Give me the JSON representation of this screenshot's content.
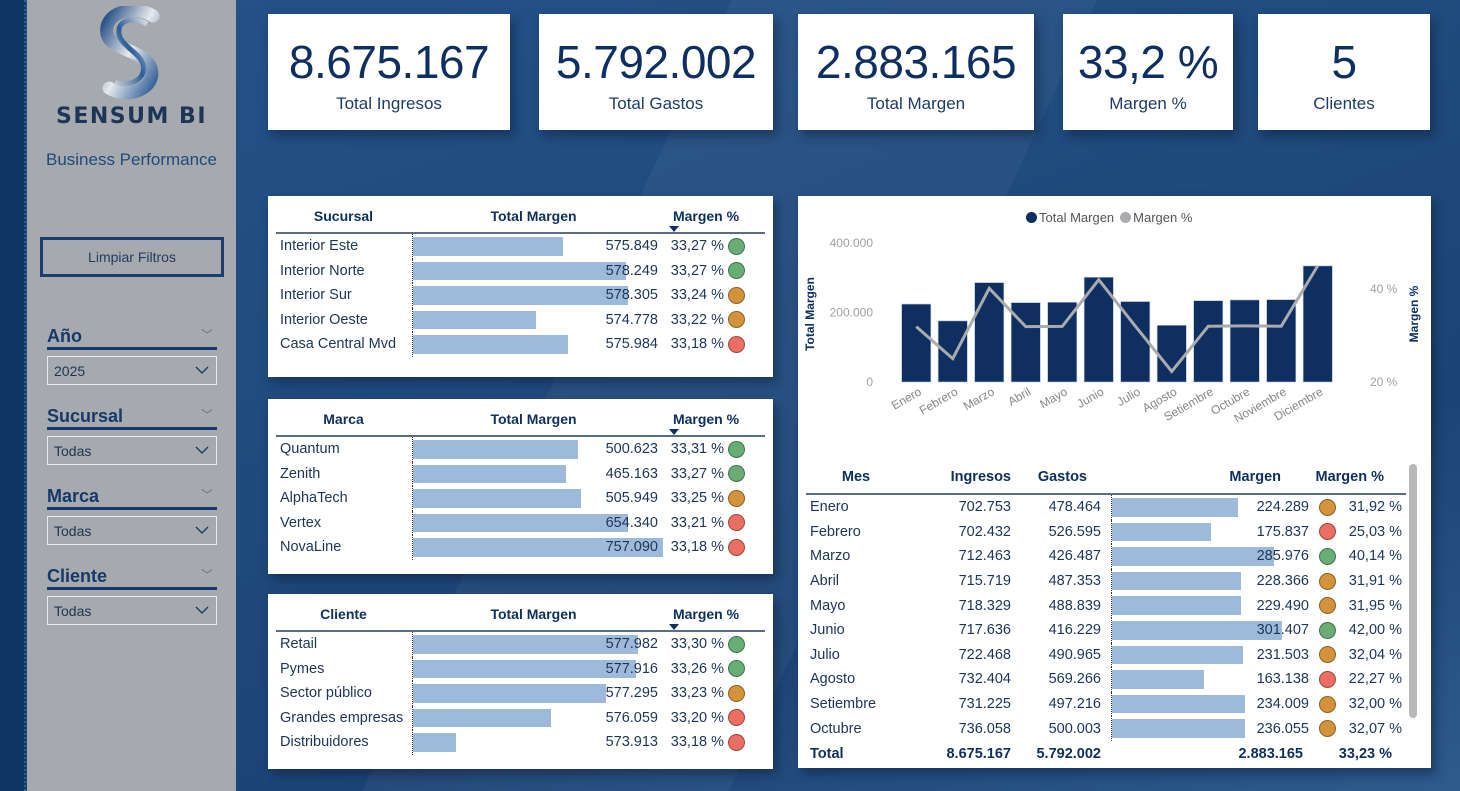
{
  "sidebar": {
    "brand": "SENSUM BI",
    "subtitle": "Business Performance",
    "clear_button": "Limpiar Filtros",
    "filters": [
      {
        "title": "Año",
        "value": "2025"
      },
      {
        "title": "Sucursal",
        "value": "Todas"
      },
      {
        "title": "Marca",
        "value": "Todas"
      },
      {
        "title": "Cliente",
        "value": "Todas"
      }
    ]
  },
  "kpis": [
    {
      "value": "8.675.167",
      "label": "Total Ingresos"
    },
    {
      "value": "5.792.002",
      "label": "Total Gastos"
    },
    {
      "value": "2.883.165",
      "label": "Total Margen"
    },
    {
      "value": "33,2 %",
      "label": "Margen %"
    },
    {
      "value": "5",
      "label": "Clientes"
    }
  ],
  "colors": {
    "good": "#67ad75",
    "mid": "#d4933a",
    "bad": "#ec6d62",
    "bar": "#9ebadb",
    "navy": "#0e2f5f",
    "line": "#a9abae"
  },
  "sucursal_table": {
    "headers": [
      "Sucursal",
      "Total Margen",
      "Margen %"
    ],
    "rows": [
      {
        "name": "Interior Este",
        "margen": "575.849",
        "bar": 0.6,
        "pct": "33,27 %",
        "status": "good"
      },
      {
        "name": "Interior Norte",
        "margen": "578.249",
        "bar": 0.85,
        "pct": "33,27 %",
        "status": "good"
      },
      {
        "name": "Interior Sur",
        "margen": "578.305",
        "bar": 0.86,
        "pct": "33,24 %",
        "status": "mid"
      },
      {
        "name": "Interior Oeste",
        "margen": "574.778",
        "bar": 0.49,
        "pct": "33,22 %",
        "status": "mid"
      },
      {
        "name": "Casa Central Mvd",
        "margen": "575.984",
        "bar": 0.62,
        "pct": "33,18 %",
        "status": "bad"
      }
    ]
  },
  "marca_table": {
    "headers": [
      "Marca",
      "Total Margen",
      "Margen %"
    ],
    "rows": [
      {
        "name": "Quantum",
        "margen": "500.623",
        "bar": 0.66,
        "pct": "33,31 %",
        "status": "good"
      },
      {
        "name": "Zenith",
        "margen": "465.163",
        "bar": 0.61,
        "pct": "33,27 %",
        "status": "good"
      },
      {
        "name": "AlphaTech",
        "margen": "505.949",
        "bar": 0.67,
        "pct": "33,25 %",
        "status": "mid"
      },
      {
        "name": "Vertex",
        "margen": "654.340",
        "bar": 0.86,
        "pct": "33,21 %",
        "status": "bad"
      },
      {
        "name": "NovaLine",
        "margen": "757.090",
        "bar": 1.0,
        "pct": "33,18 %",
        "status": "bad"
      }
    ]
  },
  "cliente_table": {
    "headers": [
      "Cliente",
      "Total Margen",
      "Margen %"
    ],
    "rows": [
      {
        "name": "Retail",
        "margen": "577.982",
        "bar": 0.9,
        "pct": "33,30 %",
        "status": "good"
      },
      {
        "name": "Pymes",
        "margen": "577.916",
        "bar": 0.89,
        "pct": "33,26 %",
        "status": "good"
      },
      {
        "name": "Sector público",
        "margen": "577.295",
        "bar": 0.77,
        "pct": "33,23 %",
        "status": "mid"
      },
      {
        "name": "Grandes empresas",
        "margen": "576.059",
        "bar": 0.55,
        "pct": "33,20 %",
        "status": "bad"
      },
      {
        "name": "Distribuidores",
        "margen": "573.913",
        "bar": 0.17,
        "pct": "33,18 %",
        "status": "bad"
      }
    ]
  },
  "chart_data": {
    "type": "bar",
    "title": "",
    "legend": [
      "Total Margen",
      "Margen %"
    ],
    "legend_position": "top-center",
    "categories": [
      "Enero",
      "Febrero",
      "Marzo",
      "Abril",
      "Mayo",
      "Junio",
      "Julio",
      "Agosto",
      "Setiembre",
      "Octubre",
      "Noviembre",
      "Diciembre"
    ],
    "series": [
      {
        "name": "Total Margen",
        "type": "bar",
        "axis": "left",
        "values": [
          224289,
          175837,
          285976,
          228366,
          229490,
          301407,
          231503,
          163138,
          234009,
          236055,
          237000,
          334000
        ]
      },
      {
        "name": "Margen %",
        "type": "line",
        "axis": "right",
        "values": [
          31.92,
          25.03,
          40.14,
          31.91,
          31.95,
          42.0,
          32.04,
          22.27,
          32.0,
          32.07,
          32.0,
          45.0
        ]
      }
    ],
    "ylabel": "Total Margen",
    "y2label": "Margen %",
    "ylim": [
      0,
      400000
    ],
    "y2lim": [
      20,
      40
    ],
    "yticks": [
      "0",
      "200.000",
      "400.000"
    ],
    "y2ticks": [
      "20 %",
      "40 %"
    ],
    "grid": false
  },
  "month_table": {
    "headers": [
      "Mes",
      "Ingresos",
      "Gastos",
      "Margen",
      "Margen %"
    ],
    "rows": [
      {
        "mes": "Enero",
        "ingresos": "702.753",
        "gastos": "478.464",
        "margen": "224.289",
        "bar": 0.74,
        "pct": "31,92 %",
        "status": "mid"
      },
      {
        "mes": "Febrero",
        "ingresos": "702.432",
        "gastos": "526.595",
        "margen": "175.837",
        "bar": 0.58,
        "pct": "25,03 %",
        "status": "bad"
      },
      {
        "mes": "Marzo",
        "ingresos": "712.463",
        "gastos": "426.487",
        "margen": "285.976",
        "bar": 0.95,
        "pct": "40,14 %",
        "status": "good"
      },
      {
        "mes": "Abril",
        "ingresos": "715.719",
        "gastos": "487.353",
        "margen": "228.366",
        "bar": 0.76,
        "pct": "31,91 %",
        "status": "mid"
      },
      {
        "mes": "Mayo",
        "ingresos": "718.329",
        "gastos": "488.839",
        "margen": "229.490",
        "bar": 0.76,
        "pct": "31,95 %",
        "status": "mid"
      },
      {
        "mes": "Junio",
        "ingresos": "717.636",
        "gastos": "416.229",
        "margen": "301.407",
        "bar": 1.0,
        "pct": "42,00 %",
        "status": "good"
      },
      {
        "mes": "Julio",
        "ingresos": "722.468",
        "gastos": "490.965",
        "margen": "231.503",
        "bar": 0.77,
        "pct": "32,04 %",
        "status": "mid"
      },
      {
        "mes": "Agosto",
        "ingresos": "732.404",
        "gastos": "569.266",
        "margen": "163.138",
        "bar": 0.54,
        "pct": "22,27 %",
        "status": "bad"
      },
      {
        "mes": "Setiembre",
        "ingresos": "731.225",
        "gastos": "497.216",
        "margen": "234.009",
        "bar": 0.78,
        "pct": "32,00 %",
        "status": "mid"
      },
      {
        "mes": "Octubre",
        "ingresos": "736.058",
        "gastos": "500.003",
        "margen": "236.055",
        "bar": 0.78,
        "pct": "32,07 %",
        "status": "mid"
      }
    ],
    "total": {
      "label": "Total",
      "ingresos": "8.675.167",
      "gastos": "5.792.002",
      "margen": "2.883.165",
      "pct": "33,23 %"
    }
  }
}
